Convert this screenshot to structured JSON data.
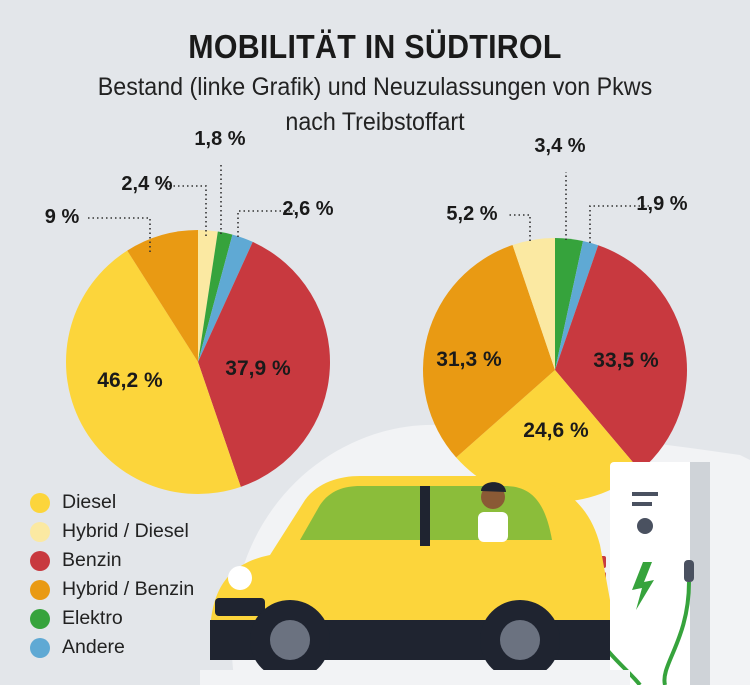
{
  "title": "MOBILITÄT IN SÜDTIROL",
  "subtitle": "Bestand (linke Grafik) und Neuzulassungen von Pkws nach Treibstoffart",
  "colors": {
    "Diesel": "#fcd53b",
    "Hybrid / Diesel": "#fbe9a2",
    "Benzin": "#c8393f",
    "Hybrid / Benzin": "#e99a13",
    "Elektro": "#36a33c",
    "Andere": "#5fa9d4"
  },
  "legend": [
    "Diesel",
    "Hybrid / Diesel",
    "Benzin",
    "Hybrid / Benzin",
    "Elektro",
    "Andere"
  ],
  "chart_data": [
    {
      "type": "pie",
      "slices": [
        {
          "name": "Hybrid / Diesel",
          "value": 2.4,
          "label": "2,4 %"
        },
        {
          "name": "Elektro",
          "value": 1.8,
          "label": "1,8 %"
        },
        {
          "name": "Andere",
          "value": 2.6,
          "label": "2,6 %"
        },
        {
          "name": "Benzin",
          "value": 37.9,
          "label": "37,9 %"
        },
        {
          "name": "Diesel",
          "value": 46.2,
          "label": "46,2 %"
        },
        {
          "name": "Hybrid / Benzin",
          "value": 9,
          "label": "9 %"
        }
      ]
    },
    {
      "type": "pie",
      "slices": [
        {
          "name": "Elektro",
          "value": 3.4,
          "label": "3,4 %"
        },
        {
          "name": "Andere",
          "value": 1.9,
          "label": "1,9 %"
        },
        {
          "name": "Benzin",
          "value": 33.5,
          "label": "33,5 %"
        },
        {
          "name": "Diesel",
          "value": 24.6,
          "label": "24,6 %"
        },
        {
          "name": "Hybrid / Benzin",
          "value": 31.3,
          "label": "31,3 %"
        },
        {
          "name": "Hybrid / Diesel",
          "value": 5.2,
          "label": "5,2 %"
        }
      ]
    }
  ]
}
